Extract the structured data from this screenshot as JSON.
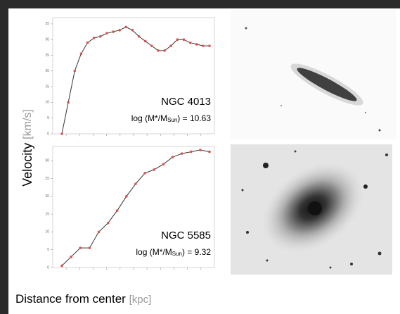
{
  "chart_data": [
    {
      "type": "line",
      "title": "NGC 4013",
      "mass_label": {
        "prefix": "log (M*/M",
        "sub": "Sun",
        "suffix": ") = 10.63"
      },
      "values": [
        0,
        10,
        20,
        25.5,
        29,
        30.5,
        31,
        32,
        32.5,
        33,
        34,
        33,
        31,
        29.5,
        28,
        26.5,
        26.5,
        28,
        30,
        30,
        29,
        28.5,
        28,
        28
      ],
      "color": "#d9534f",
      "ylim": [
        0,
        37
      ],
      "yticks": [
        0,
        5,
        10,
        15,
        20,
        25,
        30,
        35
      ]
    },
    {
      "type": "line",
      "title": "NGC 5585",
      "mass_label": {
        "prefix": "log (M*/M",
        "sub": "Sun",
        "suffix": ") = 9.32"
      },
      "values": [
        0.5,
        3,
        5.5,
        5.5,
        10,
        12.5,
        16,
        20,
        23.5,
        26.5,
        27.5,
        29,
        31,
        32,
        32.5,
        33,
        32.5
      ],
      "color": "#d9534f",
      "ylim": [
        0,
        34
      ],
      "yticks": [
        0,
        5,
        10,
        15,
        20,
        25,
        30
      ]
    }
  ],
  "y_axis": {
    "label": "Velocity",
    "unit": "[km/s]"
  },
  "x_axis": {
    "label": "Distance from center",
    "unit": "[kpc]"
  }
}
